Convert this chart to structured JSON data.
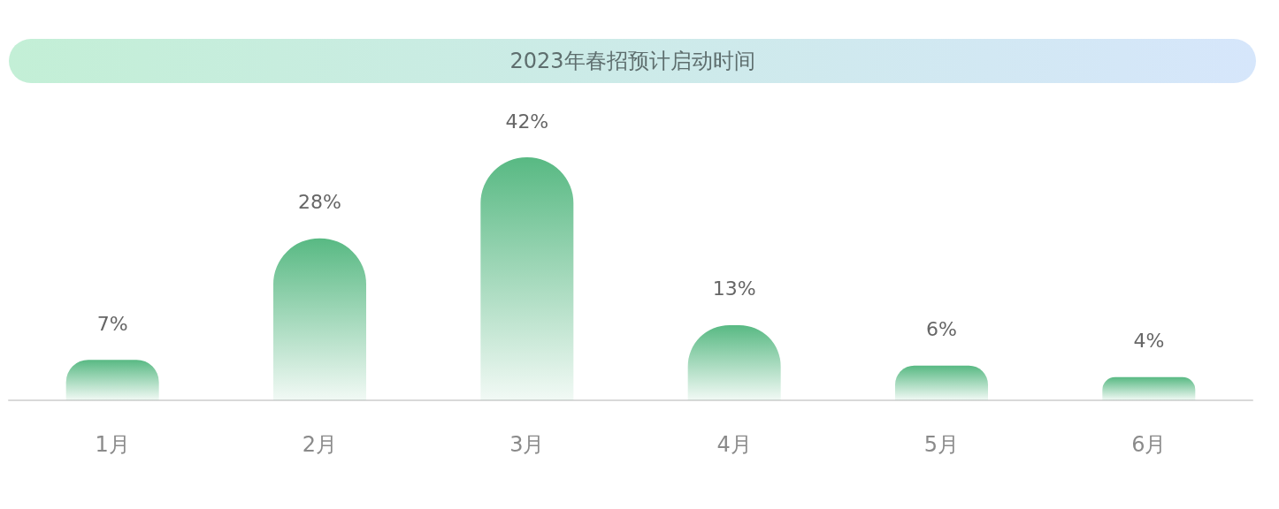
{
  "chart_data": {
    "type": "bar",
    "title": "2023年春招预计启动时间",
    "categories": [
      "1月",
      "2月",
      "3月",
      "4月",
      "5月",
      "6月"
    ],
    "values": [
      7,
      28,
      42,
      13,
      6,
      4
    ],
    "value_labels": [
      "7%",
      "28%",
      "42%",
      "13%",
      "6%",
      "4%"
    ],
    "color": "#58b983",
    "tick_labels": "x"
  }
}
